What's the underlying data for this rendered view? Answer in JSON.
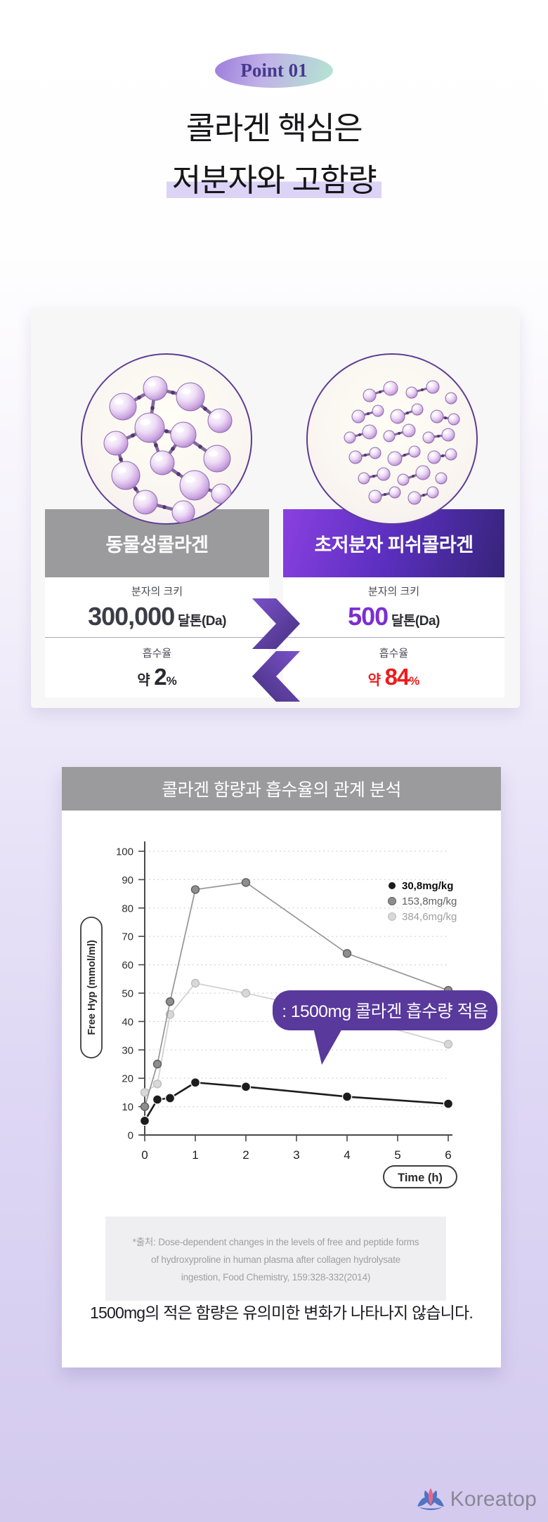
{
  "badge": {
    "label": "Point 01"
  },
  "heading": {
    "line1": "콜라겐 핵심은",
    "line2": "저분자와 고함량"
  },
  "comparison": {
    "left": {
      "title": "동물성콜라겐",
      "size_label": "분자의 크키",
      "size_value": "300,000",
      "size_unit": " 달톤(Da)",
      "absorb_label": "흡수율",
      "absorb_prefix": "약 ",
      "absorb_value": "2",
      "absorb_unit": "%"
    },
    "right": {
      "title": "초저분자 피쉬콜라겐",
      "size_label": "분자의 크키",
      "size_value": "500",
      "size_unit": " 달톤(Da)",
      "absorb_label": "흡수율",
      "absorb_prefix": "약 ",
      "absorb_value": "84",
      "absorb_unit": "%"
    },
    "accent_purple": "#59399c",
    "value_purple": "#7b2fd0",
    "value_red": "#ed1c1c"
  },
  "chart_section": {
    "title": "콜라겐 함량과 흡수율의 관계 분석",
    "callout": ": 1500mg 콜라겐 흡수량 적음"
  },
  "chart_data": {
    "type": "line",
    "title": "콜라겐 함량과 흡수율의 관계 분석",
    "xlabel": "Time (h)",
    "ylabel": "Free Hyp (mmol/ml)",
    "xlim": [
      0,
      6
    ],
    "ylim": [
      0,
      100
    ],
    "x_ticks": [
      0,
      1,
      2,
      3,
      4,
      5,
      6
    ],
    "y_ticks": [
      0,
      10,
      20,
      30,
      40,
      50,
      60,
      70,
      80,
      90,
      100
    ],
    "grid": "dotted-horizontal",
    "legend_position": "upper-right",
    "series": [
      {
        "name": "30,8mg/kg",
        "x": [
          0,
          0.25,
          0.5,
          1,
          2,
          4,
          6
        ],
        "y": [
          5,
          12.5,
          13,
          18.5,
          17,
          13.5,
          11
        ],
        "color": "#1c1c1c",
        "marker_fill": "#1c1c1c",
        "marker_stroke": "#f5f5f5",
        "line_width": 2.6,
        "marker_r": 6.5,
        "legend_text_color": "#0e0e0e"
      },
      {
        "name": "153,8mg/kg",
        "x": [
          0,
          0.25,
          0.5,
          1,
          2,
          4,
          6
        ],
        "y": [
          10,
          25,
          47,
          86.5,
          89,
          64,
          51
        ],
        "color": "#9a9a9a",
        "marker_fill": "#8e8e8e",
        "marker_stroke": "#5e5e5e",
        "line_width": 1.8,
        "marker_r": 5.5,
        "legend_text_color": "#616161"
      },
      {
        "name": "384,6mg/kg",
        "x": [
          0,
          0.25,
          0.5,
          1,
          2,
          4,
          6
        ],
        "y": [
          15,
          18,
          42.5,
          53.5,
          50,
          42,
          32
        ],
        "color": "#d2d2d2",
        "marker_fill": "#d8d8d8",
        "marker_stroke": "#bdbdbd",
        "line_width": 1.8,
        "marker_r": 5.5,
        "legend_text_color": "#9f9f9f"
      }
    ],
    "annotation": ": 1500mg 콜라겐 흡수량 적음"
  },
  "source": {
    "lines": [
      "*출처:  Dose-dependent changes in the levels of free and peptide forms",
      "of hydroxyproline in human plasma after collagen hydrolysate",
      "ingestion, Food Chemistry, 159:328-332(2014)"
    ]
  },
  "conclusion": "1500mg의 적은 함량은 유의미한 변화가 나타나지 않습니다.",
  "footer": {
    "brand": "Koreatop"
  }
}
